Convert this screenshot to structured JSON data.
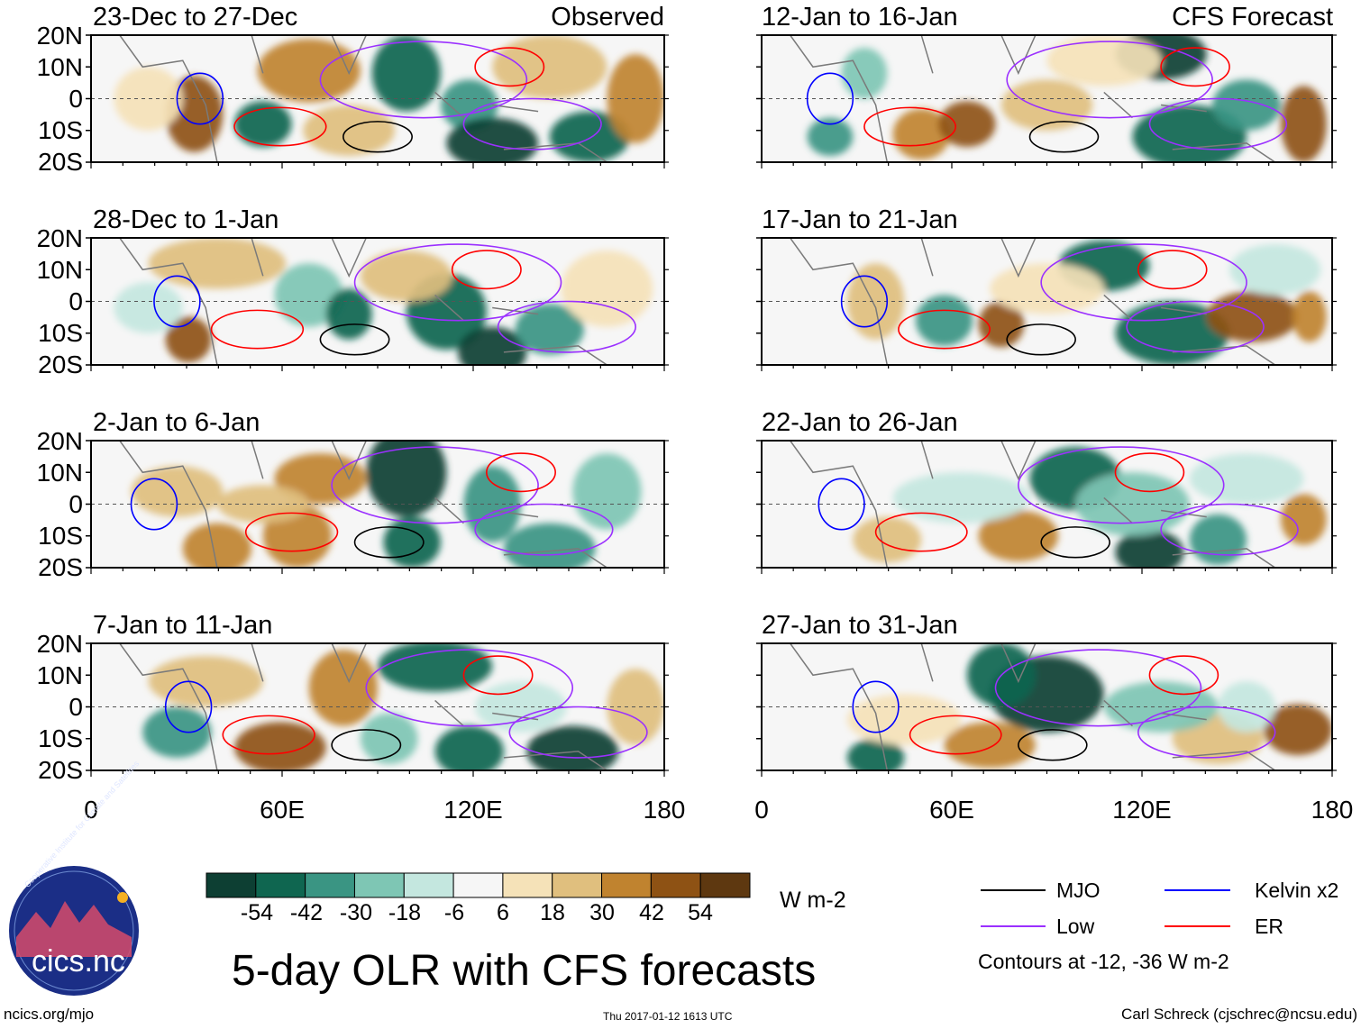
{
  "panels": [
    {
      "id": "p1",
      "title": "23-Dec to 27-Dec",
      "tag": "Observed"
    },
    {
      "id": "p2",
      "title": "12-Jan to 16-Jan",
      "tag": "CFS Forecast"
    },
    {
      "id": "p3",
      "title": "28-Dec to 1-Jan",
      "tag": ""
    },
    {
      "id": "p4",
      "title": "17-Jan to 21-Jan",
      "tag": ""
    },
    {
      "id": "p5",
      "title": "2-Jan to 6-Jan",
      "tag": ""
    },
    {
      "id": "p6",
      "title": "22-Jan to 26-Jan",
      "tag": ""
    },
    {
      "id": "p7",
      "title": "7-Jan to 11-Jan",
      "tag": ""
    },
    {
      "id": "p8",
      "title": "27-Jan to 31-Jan",
      "tag": ""
    }
  ],
  "lat_labels": [
    "20N",
    "10N",
    "0",
    "10S",
    "20S"
  ],
  "lon_labels": [
    "0",
    "60E",
    "120E",
    "180"
  ],
  "colorbar": {
    "tick_labels": [
      "-54",
      "-42",
      "-30",
      "-18",
      "-6",
      "6",
      "18",
      "30",
      "42",
      "54"
    ],
    "units": "W m-2",
    "colors": [
      "#0d3f33",
      "#0f6650",
      "#3a9583",
      "#7ec6b4",
      "#c4e7df",
      "#f6f6f6",
      "#f5e2b8",
      "#e0bf7e",
      "#c0832f",
      "#8e5214",
      "#5e3810"
    ]
  },
  "legend": {
    "items": [
      {
        "label": "MJO",
        "color": "#000000"
      },
      {
        "label": "Kelvin x2",
        "color": "#0000ff"
      },
      {
        "label": "Low",
        "color": "#9b30ff"
      },
      {
        "label": "ER",
        "color": "#ff0000"
      }
    ],
    "note": "Contours at -12, -36 W m-2"
  },
  "main_title": "5-day OLR with CFS forecasts",
  "logo_text": "cics.nc",
  "logo_arc_text": "Cooperative Institute for Climate and Satellites",
  "footer": {
    "left": "ncics.org/mjo",
    "center": "Thu 2017-01-12 1613 UTC",
    "right": "Carl Schreck (cjschrec@ncsu.edu)"
  }
}
